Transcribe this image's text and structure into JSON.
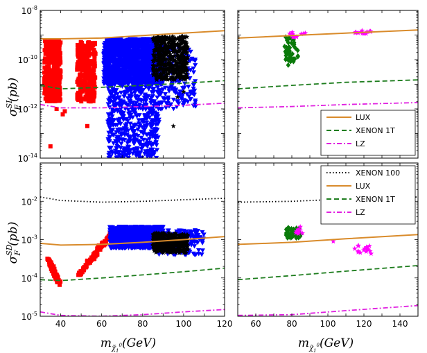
{
  "chart_data": {
    "type": "scatter",
    "y_axis_labels": {
      "top": {
        "main": "σ",
        "sup": "SI",
        "sub": "F",
        "rest": "(pb)"
      },
      "bottom": {
        "main": "σ",
        "sup": "SD",
        "sub": "F",
        "rest": "(pb)"
      }
    },
    "x_axis_label": {
      "main": "m",
      "sub": "χ̃",
      "subsub": "1",
      "subsup": "0",
      "rest": "(GeV)"
    },
    "panels": [
      {
        "id": "top-left",
        "xscale": "linear",
        "yscale": "log",
        "xlim": [
          30,
          120
        ],
        "ylim": [
          1e-14,
          1e-08
        ],
        "xticks": [],
        "yticks": [
          {
            "v": 1e-14,
            "base": "10",
            "exp": "-14"
          },
          {
            "v": 1e-12,
            "base": "10",
            "exp": "-12"
          },
          {
            "v": 1e-10,
            "base": "10",
            "exp": "-10"
          },
          {
            "v": 1e-08,
            "base": "10",
            "exp": "-8"
          }
        ],
        "curves": [
          {
            "name": "LUX",
            "color": "#d98b2b",
            "dash": "",
            "points": [
              [
                30,
                7e-10
              ],
              [
                40,
                7e-10
              ],
              [
                60,
                7.5e-10
              ],
              [
                80,
                9.5e-10
              ],
              [
                100,
                1.2e-09
              ],
              [
                120,
                1.5e-09
              ]
            ]
          },
          {
            "name": "XENON 1T",
            "color": "#1e7d1e",
            "dash": "7,4",
            "points": [
              [
                30,
                9e-12
              ],
              [
                40,
                6.5e-12
              ],
              [
                60,
                7.5e-12
              ],
              [
                80,
                9e-12
              ],
              [
                100,
                1.1e-11
              ],
              [
                120,
                1.4e-11
              ]
            ]
          },
          {
            "name": "LZ",
            "color": "#e020e0",
            "dash": "7,3,2,3",
            "points": [
              [
                30,
                1.5e-12
              ],
              [
                40,
                1.1e-12
              ],
              [
                60,
                1.1e-12
              ],
              [
                80,
                1.25e-12
              ],
              [
                100,
                1.4e-12
              ],
              [
                120,
                1.7e-12
              ]
            ]
          }
        ],
        "scatter": [
          {
            "marker": "square",
            "color": "#ff0000",
            "boxes": [
              [
                32,
                40,
                2e-12,
                6e-10,
                360
              ],
              [
                48,
                57,
                2e-12,
                6e-10,
                260
              ]
            ],
            "points": [
              [
                38,
                1e-12
              ],
              [
                42,
                8e-13
              ],
              [
                53,
                2e-13
              ],
              [
                35,
                3e-14
              ],
              [
                41,
                6e-13
              ],
              [
                55,
                6e-12
              ]
            ]
          },
          {
            "marker": "triangle",
            "color": "#0000ff",
            "boxes": [
              [
                61,
                90,
                1e-11,
                7e-10,
                1500
              ],
              [
                63,
                88,
                1e-14,
                1e-11,
                500
              ],
              [
                88,
                106,
                1e-12,
                3e-10,
                180
              ]
            ],
            "points": []
          },
          {
            "marker": "star",
            "color": "#000000",
            "boxes": [
              [
                85,
                102,
                1.5e-11,
                9e-10,
                450
              ]
            ],
            "points": [
              [
                97,
                3e-12
              ],
              [
                95,
                2e-13
              ],
              [
                100,
                5e-12
              ]
            ]
          }
        ]
      },
      {
        "id": "top-right",
        "xscale": "linear",
        "yscale": "log",
        "xlim": [
          50,
          150
        ],
        "ylim": [
          1e-14,
          1e-08
        ],
        "xticks": [],
        "yticks": [],
        "curves": [
          {
            "name": "LUX",
            "color": "#d98b2b",
            "dash": "",
            "points": [
              [
                50,
                7.5e-10
              ],
              [
                80,
                9.5e-10
              ],
              [
                110,
                1.2e-09
              ],
              [
                150,
                1.6e-09
              ]
            ]
          },
          {
            "name": "XENON 1T",
            "color": "#1e7d1e",
            "dash": "7,4",
            "points": [
              [
                50,
                6.5e-12
              ],
              [
                80,
                9e-12
              ],
              [
                110,
                1.2e-11
              ],
              [
                150,
                1.5e-11
              ]
            ]
          },
          {
            "name": "LZ",
            "color": "#e020e0",
            "dash": "7,3,2,3",
            "points": [
              [
                50,
                1.1e-12
              ],
              [
                80,
                1.25e-12
              ],
              [
                110,
                1.5e-12
              ],
              [
                150,
                1.8e-12
              ]
            ]
          }
        ],
        "scatter": [
          {
            "marker": "diamond",
            "color": "#0a7a0a",
            "boxes": [
              [
                76,
                84,
                8e-11,
                9e-10,
                45
              ]
            ],
            "points": [
              [
                78,
                6e-11
              ]
            ]
          },
          {
            "marker": "star",
            "color": "#ff00ff",
            "boxes": [
              [
                78,
                88,
                8e-10,
                1.3e-09,
                12
              ],
              [
                115,
                125,
                1.1e-09,
                1.6e-09,
                14
              ]
            ],
            "points": []
          }
        ],
        "legend": {
          "position": "bottom-right",
          "entries": [
            {
              "label": "LUX",
              "color": "#d98b2b",
              "dash": ""
            },
            {
              "label": "XENON 1T",
              "color": "#1e7d1e",
              "dash": "7,4"
            },
            {
              "label": "LZ",
              "color": "#e020e0",
              "dash": "7,3,2,3"
            }
          ]
        }
      },
      {
        "id": "bottom-left",
        "xscale": "linear",
        "yscale": "log",
        "xlim": [
          30,
          120
        ],
        "ylim": [
          1e-05,
          0.1
        ],
        "xticks": [
          40,
          60,
          80,
          100,
          120
        ],
        "yticks": [
          {
            "v": 1e-05,
            "base": "10",
            "exp": "-5"
          },
          {
            "v": 0.0001,
            "base": "10",
            "exp": "-4"
          },
          {
            "v": 0.001,
            "base": "10",
            "exp": "-3"
          },
          {
            "v": 0.01,
            "base": "10",
            "exp": "-2"
          }
        ],
        "curves": [
          {
            "name": "XENON 100",
            "color": "#000000",
            "dash": "1.5,3",
            "points": [
              [
                30,
                0.013
              ],
              [
                40,
                0.0105
              ],
              [
                60,
                0.0095
              ],
              [
                80,
                0.01
              ],
              [
                100,
                0.011
              ],
              [
                120,
                0.012
              ]
            ]
          },
          {
            "name": "LUX",
            "color": "#d98b2b",
            "dash": "",
            "points": [
              [
                30,
                0.0008
              ],
              [
                40,
                0.00072
              ],
              [
                60,
                0.00075
              ],
              [
                80,
                0.00085
              ],
              [
                100,
                0.001
              ],
              [
                120,
                0.0012
              ]
            ]
          },
          {
            "name": "XENON 1T",
            "color": "#1e7d1e",
            "dash": "7,4",
            "points": [
              [
                30,
                9e-05
              ],
              [
                40,
                8.5e-05
              ],
              [
                60,
                0.0001
              ],
              [
                80,
                0.00012
              ],
              [
                100,
                0.000145
              ],
              [
                120,
                0.00018
              ]
            ]
          },
          {
            "name": "LZ",
            "color": "#e020e0",
            "dash": "7,3,2,3",
            "points": [
              [
                30,
                1.3e-05
              ],
              [
                40,
                1.05e-05
              ],
              [
                60,
                1e-05
              ],
              [
                80,
                1.1e-05
              ],
              [
                100,
                1.3e-05
              ],
              [
                120,
                1.5e-05
              ]
            ]
          }
        ],
        "scatter": [
          {
            "marker": "square",
            "color": "#ff0000",
            "path": [
              [
                34,
                0.0003
              ],
              [
                36,
                0.00018
              ],
              [
                38,
                0.0001
              ],
              [
                39.5,
                7e-05
              ]
            ],
            "count": 70
          },
          {
            "marker": "square",
            "color": "#ff0000",
            "path": [
              [
                49,
                0.00012
              ],
              [
                52,
                0.0002
              ],
              [
                56,
                0.00035
              ],
              [
                59,
                0.0006
              ],
              [
                62,
                0.0009
              ],
              [
                65,
                0.0015
              ]
            ],
            "count": 90
          },
          {
            "marker": "triangle",
            "color": "#0000ff",
            "boxes": [
              [
                64,
                90,
                0.0006,
                0.0022,
                900
              ],
              [
                88,
                110,
                0.0004,
                0.0018,
                160
              ]
            ],
            "points": []
          },
          {
            "marker": "star",
            "color": "#000000",
            "boxes": [
              [
                85,
                102,
                0.00045,
                0.0015,
                380
              ]
            ],
            "points": []
          }
        ]
      },
      {
        "id": "bottom-right",
        "xscale": "linear",
        "yscale": "log",
        "xlim": [
          50,
          150
        ],
        "ylim": [
          1e-05,
          0.1
        ],
        "xticks": [
          60,
          80,
          100,
          120,
          140
        ],
        "yticks": [],
        "curves": [
          {
            "name": "XENON 100",
            "color": "#000000",
            "dash": "1.5,3",
            "points": [
              [
                50,
                0.0095
              ],
              [
                80,
                0.01
              ],
              [
                110,
                0.0115
              ],
              [
                150,
                0.013
              ]
            ]
          },
          {
            "name": "LUX",
            "color": "#d98b2b",
            "dash": "",
            "points": [
              [
                50,
                0.00075
              ],
              [
                80,
                0.00085
              ],
              [
                110,
                0.00105
              ],
              [
                150,
                0.00135
              ]
            ]
          },
          {
            "name": "XENON 1T",
            "color": "#1e7d1e",
            "dash": "7,4",
            "points": [
              [
                50,
                9e-05
              ],
              [
                80,
                0.000115
              ],
              [
                110,
                0.00015
              ],
              [
                150,
                0.00021
              ]
            ]
          },
          {
            "name": "LZ",
            "color": "#e020e0",
            "dash": "7,3,2,3",
            "points": [
              [
                50,
                1.05e-05
              ],
              [
                80,
                1.1e-05
              ],
              [
                110,
                1.4e-05
              ],
              [
                150,
                1.9e-05
              ]
            ]
          }
        ],
        "scatter": [
          {
            "marker": "diamond",
            "color": "#0a7a0a",
            "boxes": [
              [
                76,
                85,
                0.0011,
                0.0022,
                45
              ]
            ],
            "points": []
          },
          {
            "marker": "star",
            "color": "#ff00ff",
            "boxes": [
              [
                82,
                86,
                0.0014,
                0.0022,
                8
              ],
              [
                114,
                126,
                0.0004,
                0.0007,
                16
              ]
            ],
            "points": [
              [
                103,
                0.0009
              ]
            ]
          }
        ],
        "legend": {
          "position": "top-right",
          "entries": [
            {
              "label": "XENON 100",
              "color": "#000000",
              "dash": "1.5,3"
            },
            {
              "label": "LUX",
              "color": "#d98b2b",
              "dash": ""
            },
            {
              "label": "XENON 1T",
              "color": "#1e7d1e",
              "dash": "7,4"
            },
            {
              "label": "LZ",
              "color": "#e020e0",
              "dash": "7,3,2,3"
            }
          ]
        }
      }
    ]
  }
}
